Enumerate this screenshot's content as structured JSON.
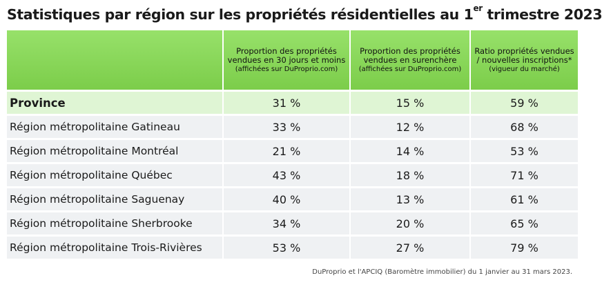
{
  "title": {
    "text_before": "Statistiques par région sur les propriétés résidentielles au 1",
    "superscript": "er",
    "text_after": " trimestre 2023"
  },
  "header": {
    "col1": {
      "main": "Proportion des propriétés vendues en 30 jours et moins",
      "sub": "(affichées sur DuProprio.com)"
    },
    "col2": {
      "main": "Proportion des propriétés vendues en surenchère",
      "sub": "(affichées sur DuProprio.com)"
    },
    "col3": {
      "main": "Ratio propriétés vendues / nouvelles inscriptions*",
      "sub": "(vigueur du marché)"
    }
  },
  "rows": [
    {
      "region": "Province",
      "sold_30_days": "31 %",
      "overbid": "15 %",
      "ratio": "59 %"
    },
    {
      "region": "Région métropolitaine Gatineau",
      "sold_30_days": "33 %",
      "overbid": "12 %",
      "ratio": "68 %"
    },
    {
      "region": "Région métropolitaine Montréal",
      "sold_30_days": "21 %",
      "overbid": "14 %",
      "ratio": "53 %"
    },
    {
      "region": "Région métropolitaine Québec",
      "sold_30_days": "43 %",
      "overbid": "18 %",
      "ratio": "71 %"
    },
    {
      "region": "Région métropolitaine Saguenay",
      "sold_30_days": "40 %",
      "overbid": "13 %",
      "ratio": "61 %"
    },
    {
      "region": "Région métropolitaine Sherbrooke",
      "sold_30_days": "34 %",
      "overbid": "20 %",
      "ratio": "65 %"
    },
    {
      "region": "Région métropolitaine Trois-Rivières",
      "sold_30_days": "53 %",
      "overbid": "27 %",
      "ratio": "79 %"
    }
  ],
  "source": "DuProprio et l'APCIQ (Baromètre immobilier) du 1 janvier au 31 mars 2023.",
  "colors": {
    "header_green": "#7ccd4a",
    "province_row": "#dff5d4",
    "row_gray": "#eff1f3"
  }
}
